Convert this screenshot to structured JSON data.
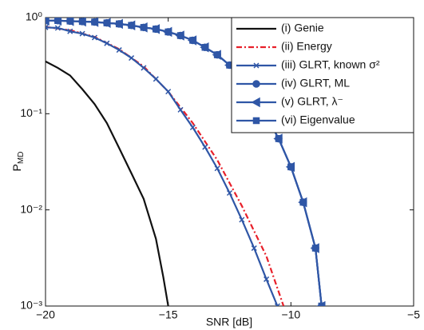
{
  "chart_data": {
    "type": "line",
    "xlabel": "SNR [dB]",
    "ylabel": "P",
    "ylabel_subscript": "MD",
    "xlim": [
      -20,
      -5
    ],
    "ylim": [
      0.001,
      1
    ],
    "log_y": true,
    "legend": "upper right",
    "xticks": [
      {
        "value": -20,
        "label": "−20"
      },
      {
        "value": -15,
        "label": "−15"
      },
      {
        "value": -10,
        "label": "−10"
      },
      {
        "value": -5,
        "label": "−5"
      }
    ],
    "yticks": [
      {
        "value": 0.001,
        "label": "10⁻³"
      },
      {
        "value": 0.01,
        "label": "10⁻²"
      },
      {
        "value": 0.1,
        "label": "10⁻¹"
      },
      {
        "value": 1,
        "label": "10⁰"
      }
    ],
    "series": [
      {
        "name": "(i) Genie",
        "color": "#111111",
        "dash": "solid",
        "marker": "none",
        "x": [
          -20,
          -19.5,
          -19,
          -18.5,
          -18,
          -17.5,
          -17,
          -16.5,
          -16,
          -15.5,
          -15.2,
          -15
        ],
        "values": [
          0.35,
          0.3,
          0.25,
          0.18,
          0.126,
          0.08,
          0.044,
          0.024,
          0.013,
          0.005,
          0.002,
          0.001
        ]
      },
      {
        "name": "(ii) Energy",
        "color": "#e8202a",
        "dash": "dashdot",
        "marker": "none",
        "x": [
          -20,
          -19,
          -18,
          -17,
          -16,
          -15,
          -14,
          -13,
          -12,
          -11,
          -10.3
        ],
        "values": [
          0.8,
          0.74,
          0.63,
          0.47,
          0.31,
          0.17,
          0.08,
          0.033,
          0.011,
          0.0033,
          0.001
        ]
      },
      {
        "name": "(iii) GLRT, known σ²",
        "color": "#2f56a6",
        "dash": "solid",
        "marker": "x",
        "x": [
          -20,
          -19.5,
          -19,
          -18.5,
          -18,
          -17.5,
          -17,
          -16.5,
          -16,
          -15.5,
          -15,
          -14.5,
          -14,
          -13.5,
          -13,
          -12.5,
          -12,
          -11.5,
          -11,
          -10.55
        ],
        "values": [
          0.79,
          0.78,
          0.72,
          0.68,
          0.62,
          0.54,
          0.46,
          0.38,
          0.3,
          0.23,
          0.17,
          0.11,
          0.072,
          0.045,
          0.027,
          0.015,
          0.0079,
          0.004,
          0.0019,
          0.001
        ]
      },
      {
        "name": "(iv) GLRT, ML",
        "color": "#2f56a6",
        "dash": "solid",
        "marker": "circle",
        "x": [
          -20,
          -19.5,
          -19,
          -18.5,
          -18,
          -17.5,
          -17,
          -16.5,
          -16,
          -15.5,
          -15,
          -14.5,
          -14,
          -13.5,
          -13,
          -12.5,
          -12,
          -11.5,
          -11,
          -10.5,
          -10,
          -9.5,
          -9,
          -8.75
        ],
        "values": [
          0.93,
          0.93,
          0.92,
          0.91,
          0.9,
          0.88,
          0.86,
          0.83,
          0.79,
          0.76,
          0.71,
          0.65,
          0.58,
          0.49,
          0.41,
          0.32,
          0.23,
          0.155,
          0.095,
          0.055,
          0.028,
          0.012,
          0.004,
          0.001
        ]
      },
      {
        "name": "(v) GLRT, λ⁻",
        "color": "#2f56a6",
        "dash": "solid",
        "marker": "triangle-left",
        "x": [
          -20,
          -19.5,
          -19,
          -18.5,
          -18,
          -17.5,
          -17,
          -16.5,
          -16,
          -15.5,
          -15,
          -14.5,
          -14,
          -13.5,
          -13,
          -12.5,
          -12,
          -11.5,
          -11,
          -10.5,
          -10,
          -9.5,
          -9,
          -8.75
        ],
        "values": [
          0.93,
          0.93,
          0.92,
          0.91,
          0.9,
          0.88,
          0.86,
          0.83,
          0.79,
          0.76,
          0.71,
          0.65,
          0.58,
          0.49,
          0.41,
          0.32,
          0.23,
          0.155,
          0.095,
          0.055,
          0.028,
          0.012,
          0.004,
          0.001
        ]
      },
      {
        "name": "(vi) Eigenvalue",
        "color": "#2f56a6",
        "dash": "solid",
        "marker": "square",
        "x": [
          -20,
          -19.5,
          -19,
          -18.5,
          -18,
          -17.5,
          -17,
          -16.5,
          -16,
          -15.5,
          -15,
          -14.5,
          -14,
          -13.5,
          -13,
          -12.5,
          -12,
          -11.5,
          -11,
          -10.5,
          -10,
          -9.5,
          -9,
          -8.75
        ],
        "values": [
          0.93,
          0.93,
          0.92,
          0.91,
          0.9,
          0.88,
          0.86,
          0.83,
          0.79,
          0.76,
          0.71,
          0.65,
          0.58,
          0.49,
          0.41,
          0.32,
          0.23,
          0.155,
          0.095,
          0.055,
          0.028,
          0.012,
          0.004,
          0.001
        ]
      }
    ]
  }
}
